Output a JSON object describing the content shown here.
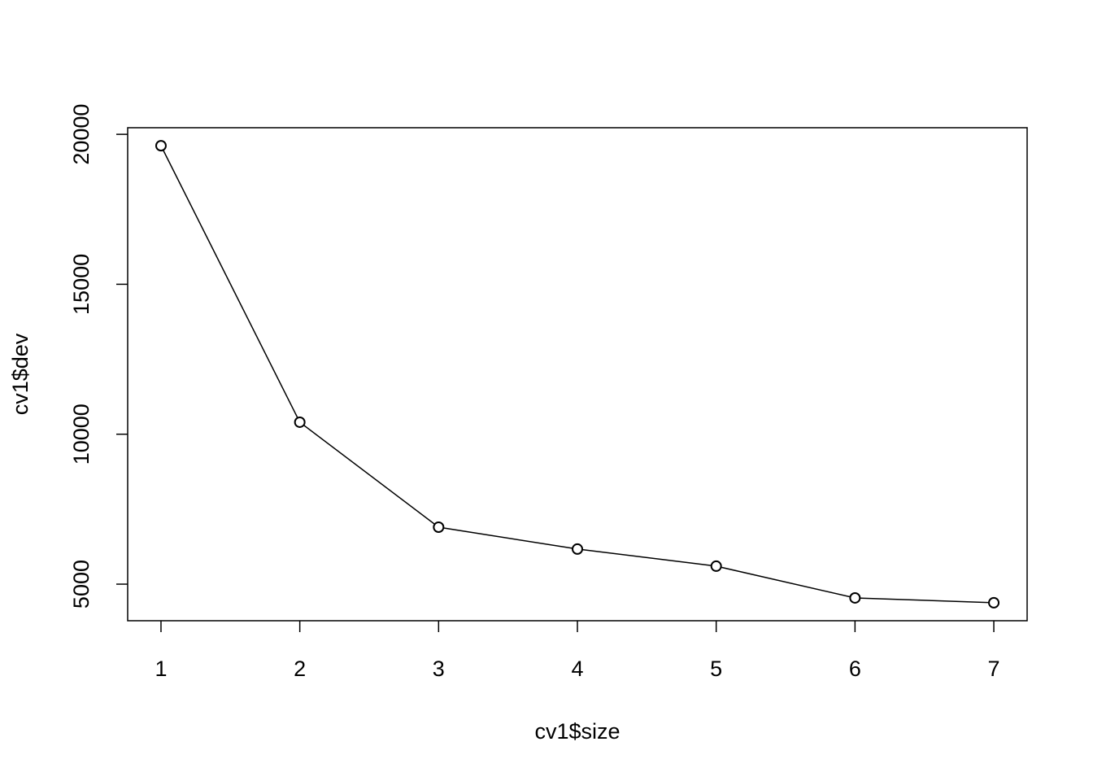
{
  "chart_data": {
    "type": "line",
    "x_label": "cv1$size",
    "y_label": "cv1$dev",
    "x": [
      1,
      2,
      3,
      4,
      5,
      6,
      7
    ],
    "values": [
      19620,
      10400,
      6900,
      6170,
      5600,
      4540,
      4380
    ],
    "color": "#000000",
    "xlim": [
      0.76,
      7.24
    ],
    "xticks": [
      1,
      2,
      3,
      4,
      5,
      6,
      7
    ],
    "ylim": [
      3780,
      20220
    ],
    "yticks": [
      5000,
      10000,
      15000,
      20000
    ],
    "grid": false
  }
}
